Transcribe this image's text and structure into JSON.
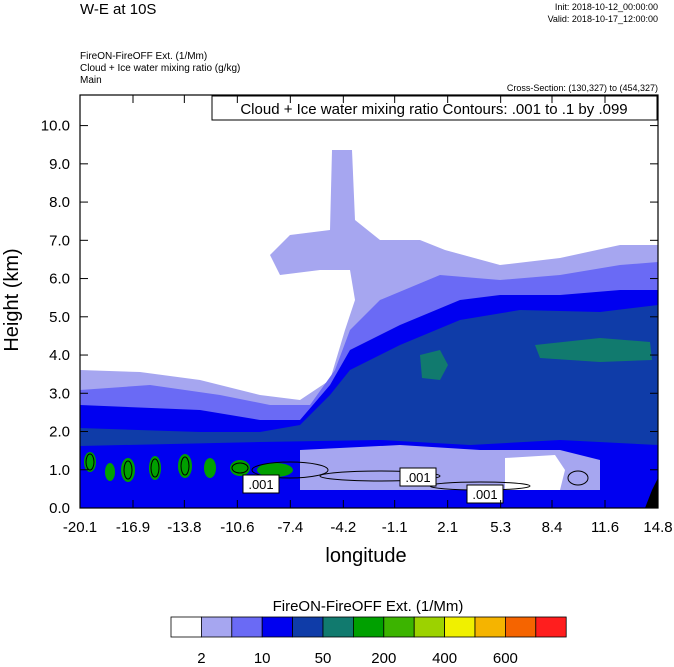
{
  "chart_data": {
    "type": "contour",
    "title": "W-E at 10S",
    "init": "Init: 2018-10-12_00:00:00",
    "valid": "Valid: 2018-10-17_12:00:00",
    "subtitle_lines": [
      "FireON-FireOFF Ext.   (1/Mm)",
      "Cloud + Ice water mixing ratio   (g/kg)",
      "Main"
    ],
    "cross_section": "Cross-Section: (130,327) to (454,327)",
    "contour_info": "Cloud + Ice water mixing ratio Contours: .001 to .1 by .099",
    "contour_labels": [
      ".001",
      ".001",
      ".001"
    ],
    "x_label": "longitude",
    "y_label": "Height (km)",
    "xlim": [
      -20.1,
      14.8
    ],
    "xticks": [
      -20.1,
      -16.9,
      -13.8,
      -10.6,
      -7.4,
      -4.2,
      -1.1,
      2.1,
      5.3,
      8.4,
      11.6,
      14.8
    ],
    "ylim": [
      0,
      10.8
    ],
    "yticks": [
      {
        "value": 0,
        "label": "0.0"
      },
      {
        "value": 1,
        "label": "1.0"
      },
      {
        "value": 2,
        "label": "2.0"
      },
      {
        "value": 3,
        "label": "3.0"
      },
      {
        "value": 4,
        "label": "4.0"
      },
      {
        "value": 5,
        "label": "5.0"
      },
      {
        "value": 6,
        "label": "6.0"
      },
      {
        "value": 7,
        "label": "7.0"
      },
      {
        "value": 8,
        "label": "8.0"
      },
      {
        "value": 9,
        "label": "9.0"
      },
      {
        "value": 10,
        "label": "10.0"
      }
    ],
    "colorbar": {
      "title": "FireON-FireOFF Ext.  (1/Mm)",
      "colors": [
        "#ffffff",
        "#a6a6f0",
        "#6a6af5",
        "#0000f0",
        "#0f3ca8",
        "#117a6e",
        "#00a000",
        "#3cb400",
        "#9cd200",
        "#f0f000",
        "#f5b400",
        "#f56400",
        "#ff1e1e"
      ],
      "ticks": [
        2,
        10,
        50,
        200,
        400,
        600
      ]
    }
  }
}
